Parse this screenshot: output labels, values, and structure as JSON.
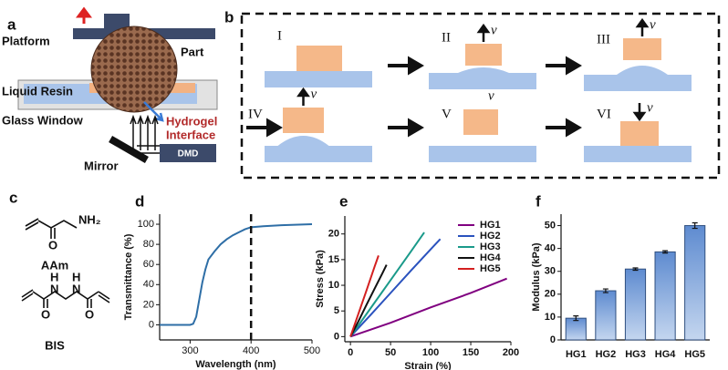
{
  "panel_labels": [
    "a",
    "b",
    "c",
    "d",
    "e",
    "f"
  ],
  "schematic": {
    "platform": "Platform",
    "part": "Part",
    "liquid_resin": "Liquid Resin",
    "glass_window": "Glass Window",
    "hydrogel_interface": [
      "Hydrogel",
      "Interface"
    ],
    "mirror": "Mirror",
    "dmd": "DMD"
  },
  "steps": {
    "labels": [
      "I",
      "II",
      "III",
      "IV",
      "V",
      "VI"
    ],
    "velocity": "v"
  },
  "molecules": {
    "aam": {
      "name": "AAm",
      "amine": "NH₂",
      "oxygen": "O"
    },
    "bis": {
      "name": "BIS",
      "nitrogen": "N",
      "hydrogen": "H",
      "oxygen": "O"
    }
  },
  "chart_data": [
    {
      "type": "line",
      "xlabel": "Wavelength (nm)",
      "ylabel": "Transmittance (%)",
      "x": [
        250,
        280,
        300,
        305,
        310,
        315,
        320,
        325,
        330,
        340,
        350,
        360,
        370,
        380,
        390,
        400,
        420,
        450,
        500
      ],
      "values": [
        0,
        0,
        0,
        1,
        8,
        25,
        42,
        55,
        65,
        73,
        80,
        85,
        89,
        92,
        95,
        97,
        98,
        99,
        100
      ],
      "color": "#2e6ea6",
      "xlim": [
        250,
        500
      ],
      "ylim": [
        -15,
        110
      ],
      "xticks": [
        300,
        400,
        500
      ],
      "yticks": [
        0,
        20,
        40,
        60,
        80,
        100
      ],
      "vline": 400
    },
    {
      "type": "line",
      "xlabel": "Strain (%)",
      "ylabel": "Stress (kPa)",
      "legend": "upper right",
      "xlim": [
        -7,
        200
      ],
      "ylim": [
        -1,
        23.5
      ],
      "xticks": [
        0,
        50,
        100,
        150,
        200
      ],
      "yticks": [
        0,
        5,
        10,
        15,
        20
      ],
      "series": [
        {
          "name": "HG1",
          "color": "#800080",
          "x": [
            0,
            50,
            100,
            150,
            195
          ],
          "values": [
            0,
            2.7,
            5.7,
            8.5,
            11.3
          ]
        },
        {
          "name": "HG2",
          "color": "#2a52be",
          "x": [
            0,
            25,
            50,
            75,
            100,
            112
          ],
          "values": [
            0,
            4.2,
            8.5,
            12.8,
            17,
            19
          ]
        },
        {
          "name": "HG3",
          "color": "#1a9a8a",
          "x": [
            0,
            25,
            50,
            75,
            92
          ],
          "values": [
            0,
            5.5,
            11,
            16.5,
            20.3
          ]
        },
        {
          "name": "HG4",
          "color": "#111111",
          "x": [
            0,
            10,
            20,
            30,
            40,
            45
          ],
          "values": [
            0,
            3,
            6.2,
            9.3,
            12.4,
            14
          ]
        },
        {
          "name": "HG5",
          "color": "#d42020",
          "x": [
            0,
            10,
            20,
            30,
            35
          ],
          "values": [
            0,
            4.5,
            9,
            13.6,
            15.8
          ]
        }
      ]
    },
    {
      "type": "bar",
      "ylabel": "Modulus (kPa)",
      "categories": [
        "HG1",
        "HG2",
        "HG3",
        "HG4",
        "HG5"
      ],
      "values": [
        9.5,
        21.5,
        31,
        38.5,
        50
      ],
      "errors": [
        1,
        0.8,
        0.5,
        0.5,
        1.2
      ],
      "color": "#7fa6d8",
      "ylim": [
        0,
        55
      ],
      "yticks": [
        0,
        10,
        20,
        30,
        40,
        50
      ]
    }
  ]
}
